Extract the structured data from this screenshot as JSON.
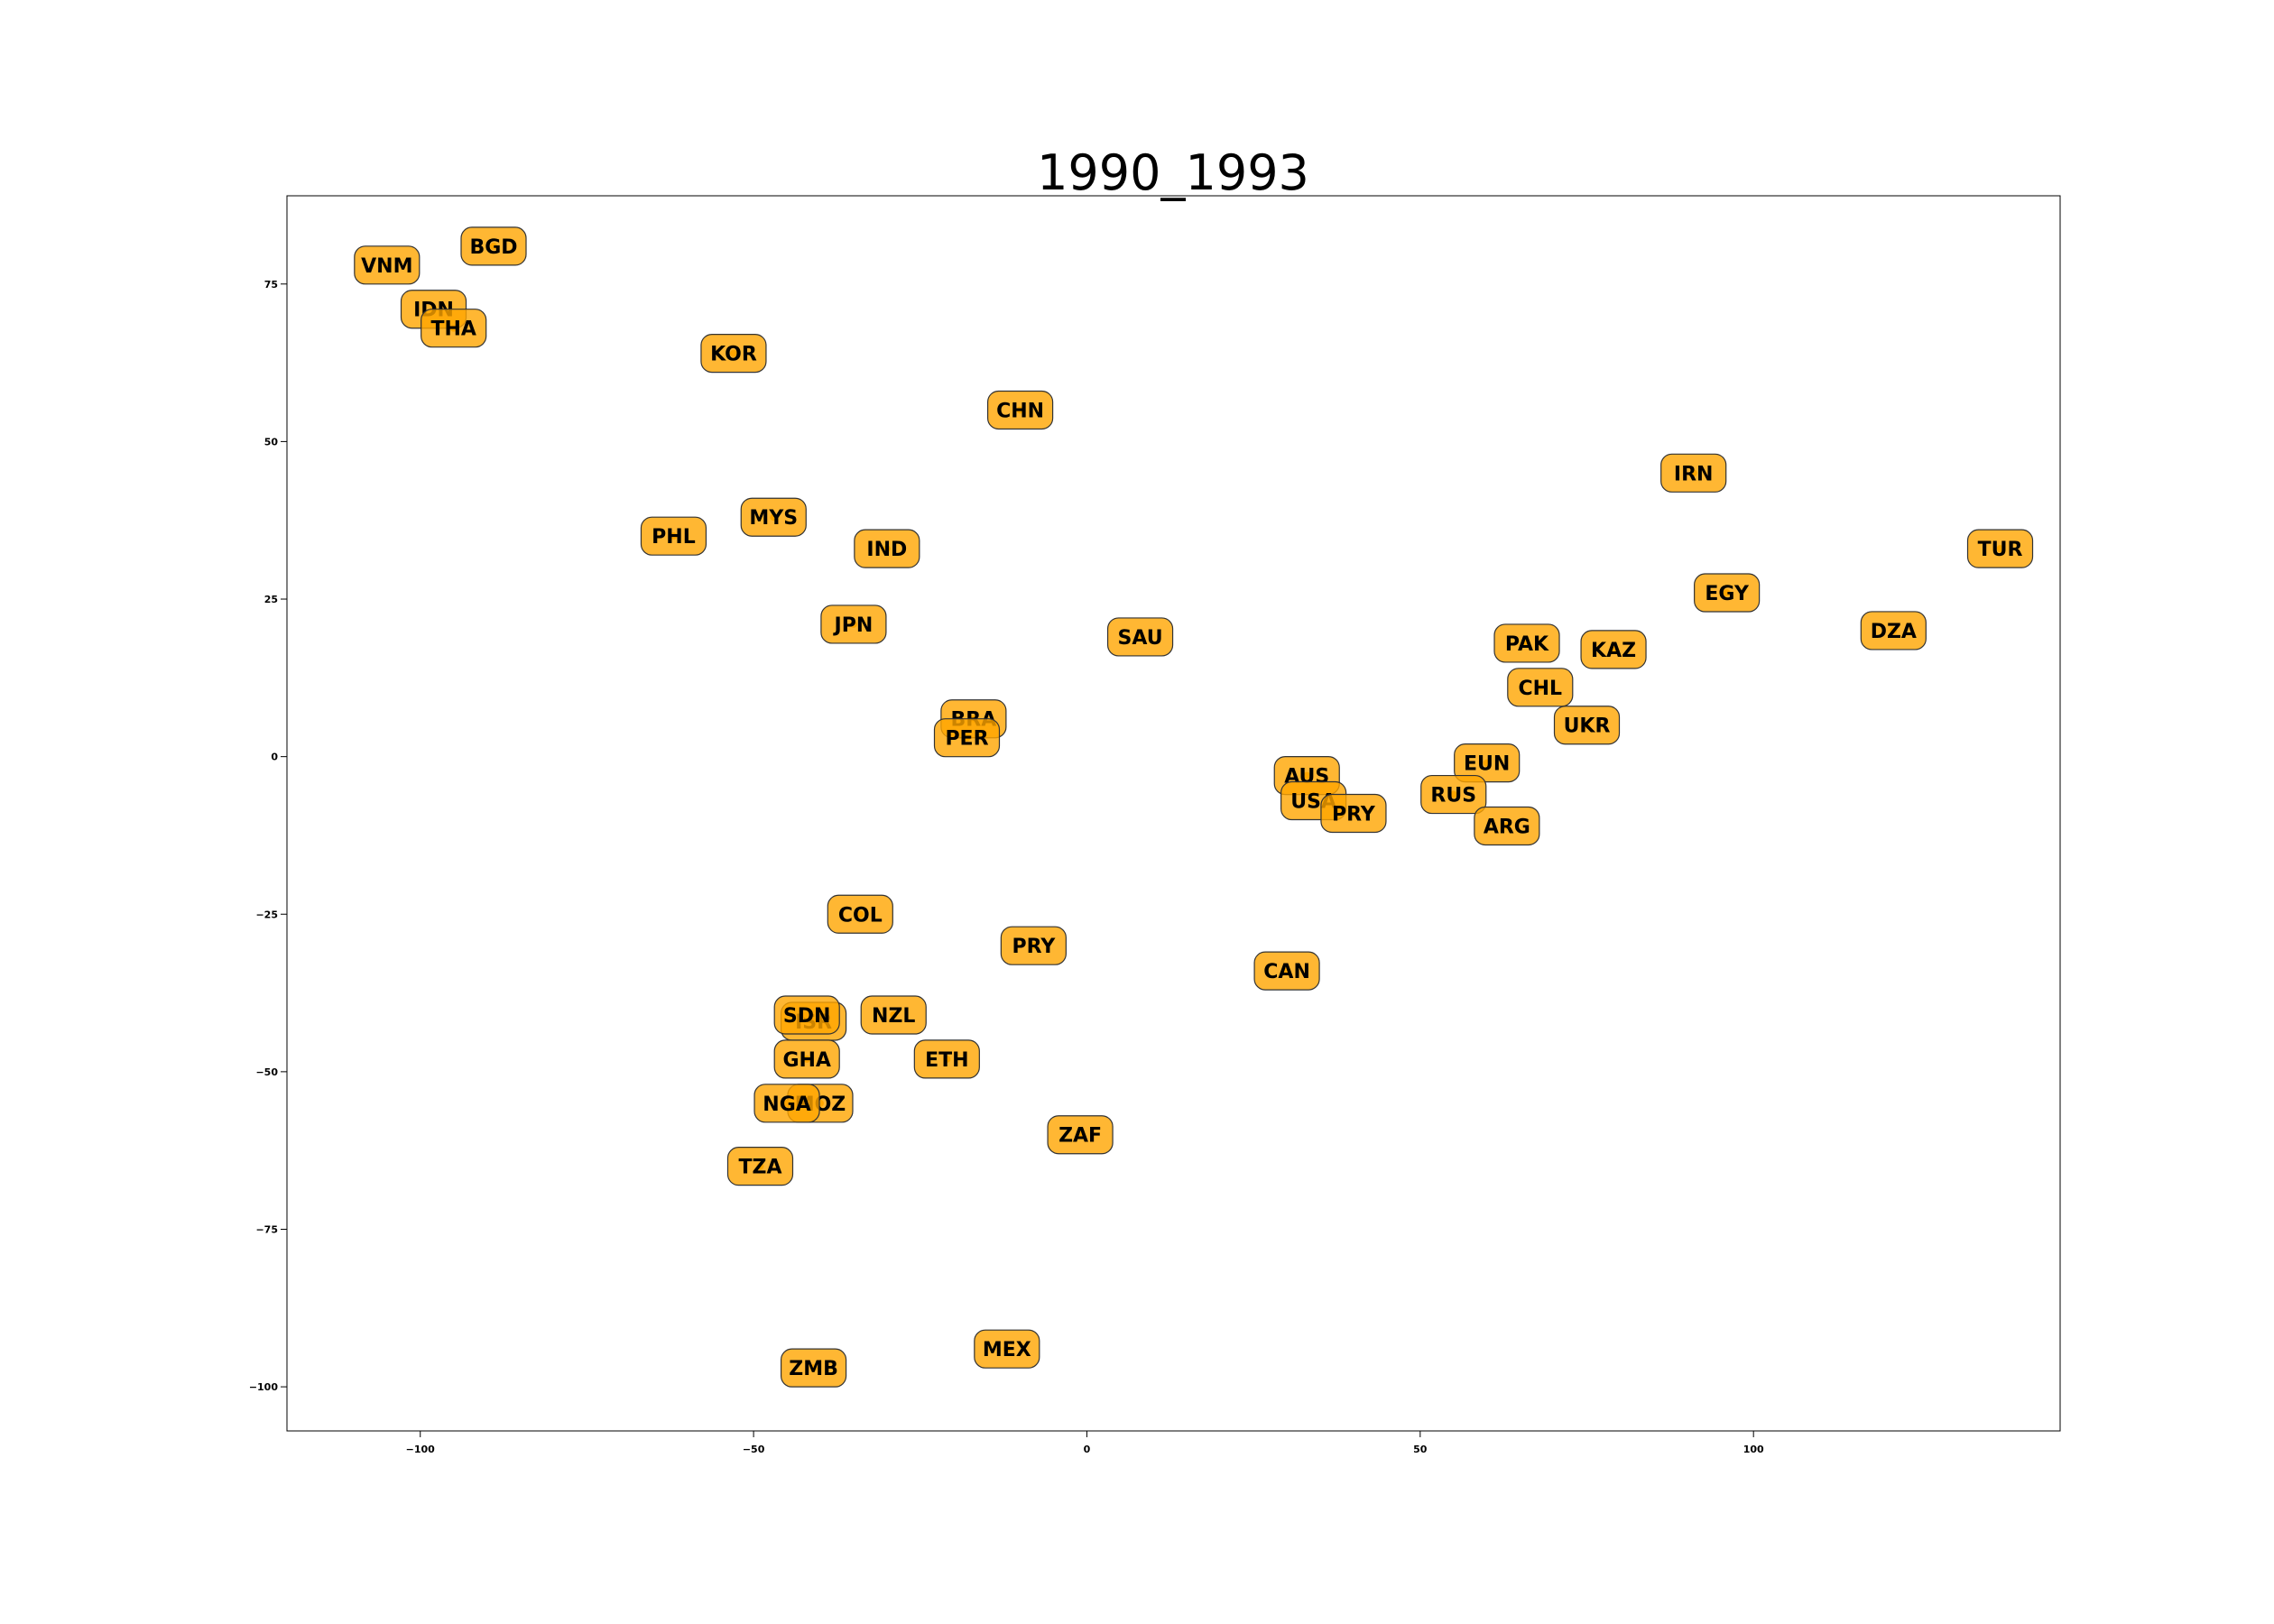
{
  "chart_data": {
    "type": "scatter",
    "title": "1990_1993",
    "xlabel": "",
    "ylabel": "",
    "xlim": [
      -120,
      146
    ],
    "ylim": [
      -107,
      89
    ],
    "x_ticks": [
      -100,
      -50,
      0,
      50,
      100
    ],
    "y_ticks": [
      -100,
      -75,
      -50,
      -25,
      0,
      25,
      50,
      75
    ],
    "x_tick_labels": [
      "−100",
      "−50",
      "0",
      "50",
      "100"
    ],
    "y_tick_labels": [
      "−100",
      "−75",
      "−50",
      "−25",
      "0",
      "25",
      "50",
      "75"
    ],
    "grid": false,
    "point_color": "#ffa500",
    "box_color": "#ffa500",
    "points": [
      {
        "label": "VNM",
        "x": -105,
        "y": 78
      },
      {
        "label": "BGD",
        "x": -89,
        "y": 81
      },
      {
        "label": "IDN",
        "x": -98,
        "y": 71
      },
      {
        "label": "THA",
        "x": -95,
        "y": 68
      },
      {
        "label": "KOR",
        "x": -53,
        "y": 64
      },
      {
        "label": "CHN",
        "x": -10,
        "y": 55
      },
      {
        "label": "PHL",
        "x": -62,
        "y": 35
      },
      {
        "label": "MYS",
        "x": -47,
        "y": 38
      },
      {
        "label": "IND",
        "x": -30,
        "y": 33
      },
      {
        "label": "JPN",
        "x": -35,
        "y": 21
      },
      {
        "label": "SAU",
        "x": 8,
        "y": 19
      },
      {
        "label": "BRA",
        "x": -17,
        "y": 6
      },
      {
        "label": "PER",
        "x": -18,
        "y": 3
      },
      {
        "label": "IRN",
        "x": 91,
        "y": 45
      },
      {
        "label": "TUR",
        "x": 137,
        "y": 33
      },
      {
        "label": "EGY",
        "x": 96,
        "y": 26
      },
      {
        "label": "DZA",
        "x": 121,
        "y": 20
      },
      {
        "label": "PAK",
        "x": 66,
        "y": 18
      },
      {
        "label": "KAZ",
        "x": 79,
        "y": 17
      },
      {
        "label": "CHL",
        "x": 68,
        "y": 11
      },
      {
        "label": "UKR",
        "x": 75,
        "y": 5
      },
      {
        "label": "EUN",
        "x": 60,
        "y": -1
      },
      {
        "label": "AUS",
        "x": 33,
        "y": -3
      },
      {
        "label": "RUS",
        "x": 55,
        "y": -6
      },
      {
        "label": "USA",
        "x": 34,
        "y": -7
      },
      {
        "label": "ARG",
        "x": 63,
        "y": -11
      },
      {
        "label": "PRY",
        "x": 40,
        "y": -9
      },
      {
        "label": "COL",
        "x": -34,
        "y": -25
      },
      {
        "label": "PRY",
        "x": -8,
        "y": -30
      },
      {
        "label": "CAN",
        "x": 30,
        "y": -34
      },
      {
        "label": "ISR",
        "x": -41,
        "y": -42
      },
      {
        "label": "SDN",
        "x": -42,
        "y": -41
      },
      {
        "label": "NZL",
        "x": -29,
        "y": -41
      },
      {
        "label": "ETH",
        "x": -21,
        "y": -48
      },
      {
        "label": "GHA",
        "x": -42,
        "y": -48
      },
      {
        "label": "MOZ",
        "x": -40,
        "y": -55
      },
      {
        "label": "NGA",
        "x": -45,
        "y": -55
      },
      {
        "label": "ZAF",
        "x": -1,
        "y": -60
      },
      {
        "label": "TZA",
        "x": -49,
        "y": -65
      },
      {
        "label": "MEX",
        "x": -12,
        "y": -94
      },
      {
        "label": "ZMB",
        "x": -41,
        "y": -97
      }
    ]
  }
}
